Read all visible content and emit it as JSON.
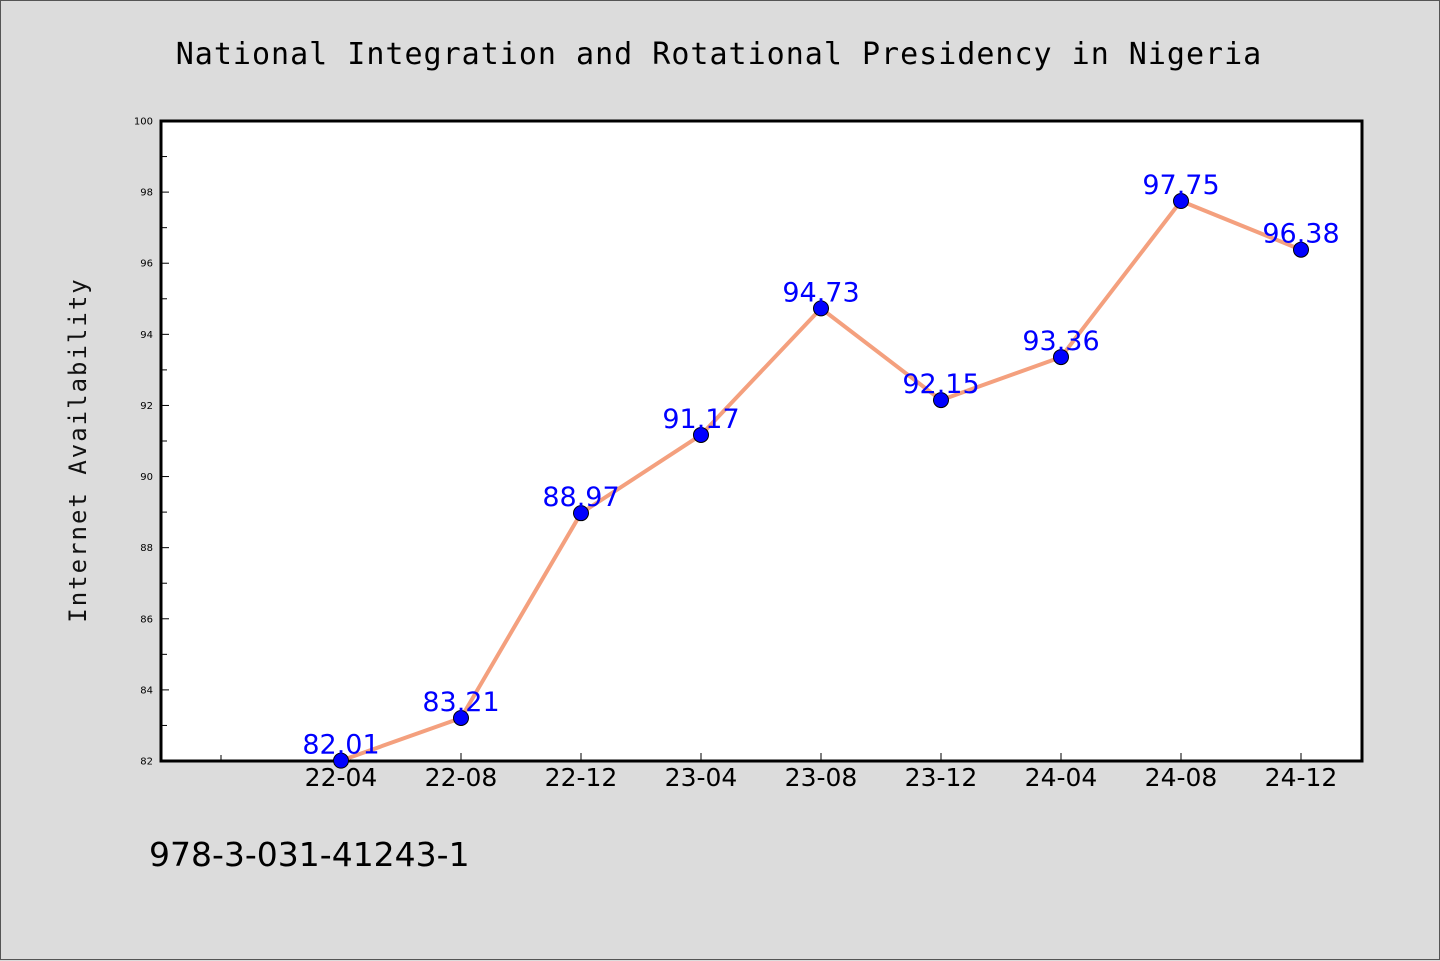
{
  "chart_data": {
    "type": "line",
    "title": "National Integration and Rotational Presidency in Nigeria",
    "xlabel": "",
    "ylabel": "Internet Availability",
    "categories": [
      "22-04",
      "22-08",
      "22-12",
      "23-04",
      "23-08",
      "23-12",
      "24-04",
      "24-08",
      "24-12"
    ],
    "series": [
      {
        "values": [
          82.01,
          83.21,
          88.97,
          91.17,
          94.73,
          92.15,
          93.36,
          97.75,
          96.38
        ],
        "labels": [
          "82.01",
          "83.21",
          "88.97",
          "91.17",
          "94.73",
          "92.15",
          "93.36",
          "97.75",
          "96.38"
        ]
      }
    ],
    "ylim": [
      82,
      100
    ],
    "yticks": [
      "82",
      "84",
      "86",
      "88",
      "90",
      "92",
      "94",
      "96",
      "98",
      "100"
    ],
    "grid": false,
    "line_color": "#f4a07e",
    "marker_color": "#0000ff",
    "label_color": "#0000ff"
  },
  "footnote": "978-3-031-41243-1"
}
